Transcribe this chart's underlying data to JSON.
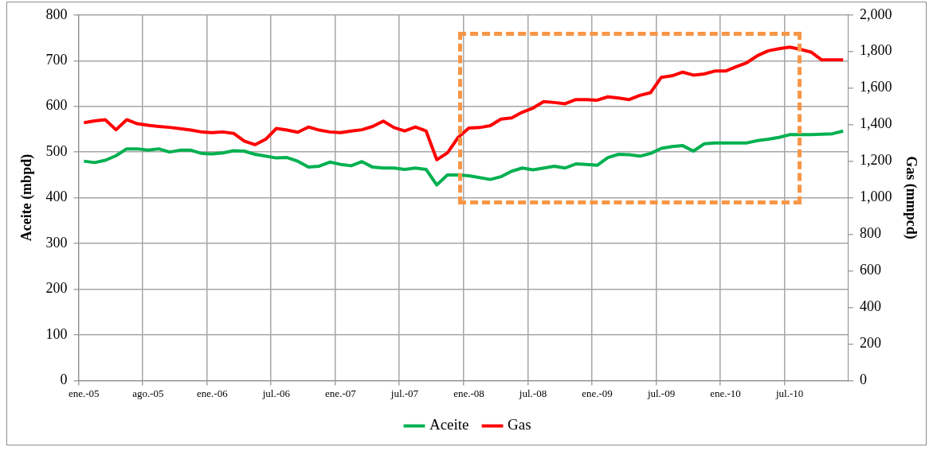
{
  "chart_data": {
    "type": "line",
    "ylabel": "Aceite (mbpd)",
    "y2label": "Gas (mmpcd)",
    "categories": [
      "ene.-05",
      null,
      null,
      null,
      null,
      null,
      "ago.-05",
      null,
      null,
      null,
      null,
      null,
      "ene.-06",
      null,
      null,
      null,
      null,
      null,
      "jul.-06",
      null,
      null,
      null,
      null,
      null,
      "ene.-07",
      null,
      null,
      null,
      null,
      null,
      "jul.-07",
      null,
      null,
      null,
      null,
      null,
      "ene.-08",
      null,
      null,
      null,
      null,
      null,
      "jul.-08",
      null,
      null,
      null,
      null,
      null,
      "ene.-09",
      null,
      null,
      null,
      null,
      null,
      "jul.-09",
      null,
      null,
      null,
      null,
      null,
      "ene.-10",
      null,
      null,
      null,
      null,
      null,
      "jul.-10",
      null,
      null,
      null,
      null,
      null
    ],
    "series": [
      {
        "name": "Aceite",
        "color": "#00b050",
        "values": [
          480,
          477,
          482,
          492,
          507,
          507,
          504,
          507,
          500,
          504,
          504,
          497,
          496,
          498,
          503,
          502,
          495,
          491,
          487,
          488,
          480,
          467,
          469,
          478,
          473,
          470,
          479,
          467,
          465,
          465,
          462,
          465,
          462,
          428,
          450,
          450,
          448,
          444,
          440,
          446,
          458,
          465,
          461,
          465,
          469,
          465,
          474,
          473,
          471,
          488,
          495,
          494,
          491,
          497,
          508,
          512,
          514,
          502,
          518,
          520,
          520,
          520,
          520,
          525,
          528,
          532,
          538,
          538,
          538,
          539,
          540,
          546
        ]
      },
      {
        "name": "Gas",
        "color": "#ff0000",
        "axis": "y2",
        "values": [
          1411,
          1420,
          1427,
          1372,
          1427,
          1405,
          1396,
          1390,
          1385,
          1378,
          1370,
          1360,
          1356,
          1360,
          1352,
          1310,
          1290,
          1320,
          1379,
          1370,
          1358,
          1387,
          1370,
          1360,
          1356,
          1365,
          1372,
          1390,
          1419,
          1384,
          1365,
          1387,
          1365,
          1208,
          1246,
          1330,
          1381,
          1384,
          1394,
          1430,
          1437,
          1468,
          1491,
          1526,
          1521,
          1514,
          1537,
          1537,
          1534,
          1552,
          1545,
          1537,
          1560,
          1575,
          1659,
          1667,
          1687,
          1671,
          1677,
          1693,
          1693,
          1717,
          1739,
          1778,
          1804,
          1815,
          1824,
          1812,
          1797,
          1754,
          1754,
          1754
        ]
      }
    ],
    "ylim": [
      0,
      800
    ],
    "yticks": [
      0,
      100,
      200,
      300,
      400,
      500,
      600,
      700,
      800
    ],
    "y2lim": [
      0,
      2000
    ],
    "y2ticks": [
      0,
      200,
      400,
      600,
      800,
      {
        "value": 1000,
        "label": "1,000"
      },
      {
        "value": 1200,
        "label": "1,200"
      },
      {
        "value": 1400,
        "label": "1,400"
      },
      {
        "value": 1600,
        "label": "1,600"
      },
      {
        "value": 1800,
        "label": "1,800"
      },
      {
        "value": 2000,
        "label": "2,000"
      }
    ],
    "grid": true,
    "legend": "bottom",
    "marker": "none",
    "line_style": "solid"
  }
}
